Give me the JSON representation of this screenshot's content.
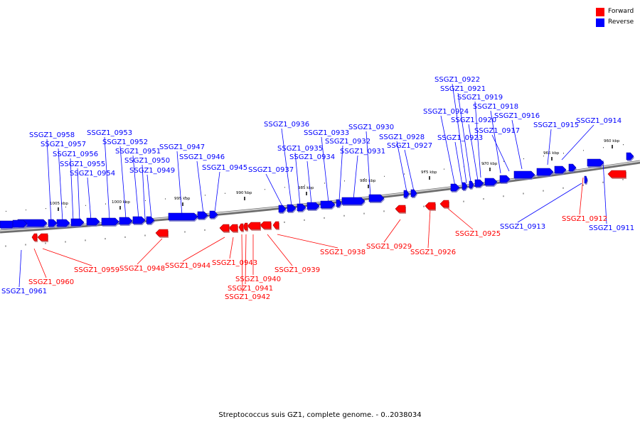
{
  "legend": {
    "forward": {
      "label": "Forward",
      "color": "#ff0000"
    },
    "reverse": {
      "label": "Reverse",
      "color": "#0000ff"
    }
  },
  "caption": "Streptococcus suis GZ1, complete genome. - 0..2038034",
  "ticks": [
    "1005 kbp",
    "1000 kbp",
    "995 kbp",
    "990 kbp",
    "985 kbp",
    "980 kbp",
    "975 kbp",
    "970 kbp",
    "965 kbp",
    "960 kbp"
  ],
  "genes": [
    {
      "id": "SSGZ1_0911",
      "strand": "reverse"
    },
    {
      "id": "SSGZ1_0912",
      "strand": "forward"
    },
    {
      "id": "SSGZ1_0913",
      "strand": "reverse"
    },
    {
      "id": "SSGZ1_0914",
      "strand": "reverse"
    },
    {
      "id": "SSGZ1_0915",
      "strand": "reverse"
    },
    {
      "id": "SSGZ1_0916",
      "strand": "reverse"
    },
    {
      "id": "SSGZ1_0917",
      "strand": "reverse"
    },
    {
      "id": "SSGZ1_0918",
      "strand": "reverse"
    },
    {
      "id": "SSGZ1_0919",
      "strand": "reverse"
    },
    {
      "id": "SSGZ1_0920",
      "strand": "reverse"
    },
    {
      "id": "SSGZ1_0921",
      "strand": "reverse"
    },
    {
      "id": "SSGZ1_0922",
      "strand": "reverse"
    },
    {
      "id": "SSGZ1_0923",
      "strand": "reverse"
    },
    {
      "id": "SSGZ1_0924",
      "strand": "reverse"
    },
    {
      "id": "SSGZ1_0925",
      "strand": "forward"
    },
    {
      "id": "SSGZ1_0926",
      "strand": "forward"
    },
    {
      "id": "SSGZ1_0927",
      "strand": "reverse"
    },
    {
      "id": "SSGZ1_0928",
      "strand": "reverse"
    },
    {
      "id": "SSGZ1_0929",
      "strand": "forward"
    },
    {
      "id": "SSGZ1_0930",
      "strand": "reverse"
    },
    {
      "id": "SSGZ1_0931",
      "strand": "reverse"
    },
    {
      "id": "SSGZ1_0932",
      "strand": "reverse"
    },
    {
      "id": "SSGZ1_0933",
      "strand": "reverse"
    },
    {
      "id": "SSGZ1_0934",
      "strand": "reverse"
    },
    {
      "id": "SSGZ1_0935",
      "strand": "reverse"
    },
    {
      "id": "SSGZ1_0936",
      "strand": "reverse"
    },
    {
      "id": "SSGZ1_0937",
      "strand": "reverse"
    },
    {
      "id": "SSGZ1_0938",
      "strand": "forward"
    },
    {
      "id": "SSGZ1_0939",
      "strand": "forward"
    },
    {
      "id": "SSGZ1_0940",
      "strand": "forward"
    },
    {
      "id": "SSGZ1_0941",
      "strand": "forward"
    },
    {
      "id": "SSGZ1_0942",
      "strand": "forward"
    },
    {
      "id": "SSGZ1_0943",
      "strand": "forward"
    },
    {
      "id": "SSGZ1_0944",
      "strand": "forward"
    },
    {
      "id": "SSGZ1_0945",
      "strand": "reverse"
    },
    {
      "id": "SSGZ1_0946",
      "strand": "reverse"
    },
    {
      "id": "SSGZ1_0947",
      "strand": "reverse"
    },
    {
      "id": "SSGZ1_0948",
      "strand": "forward"
    },
    {
      "id": "SSGZ1_0949",
      "strand": "reverse"
    },
    {
      "id": "SSGZ1_0950",
      "strand": "reverse"
    },
    {
      "id": "SSGZ1_0951",
      "strand": "reverse"
    },
    {
      "id": "SSGZ1_0952",
      "strand": "reverse"
    },
    {
      "id": "SSGZ1_0953",
      "strand": "reverse"
    },
    {
      "id": "SSGZ1_0954",
      "strand": "reverse"
    },
    {
      "id": "SSGZ1_0955",
      "strand": "reverse"
    },
    {
      "id": "SSGZ1_0956",
      "strand": "reverse"
    },
    {
      "id": "SSGZ1_0957",
      "strand": "reverse"
    },
    {
      "id": "SSGZ1_0958",
      "strand": "reverse"
    },
    {
      "id": "SSGZ1_0959",
      "strand": "forward"
    },
    {
      "id": "SSGZ1_0960",
      "strand": "forward"
    },
    {
      "id": "SSGZ1_0961",
      "strand": "reverse"
    }
  ]
}
